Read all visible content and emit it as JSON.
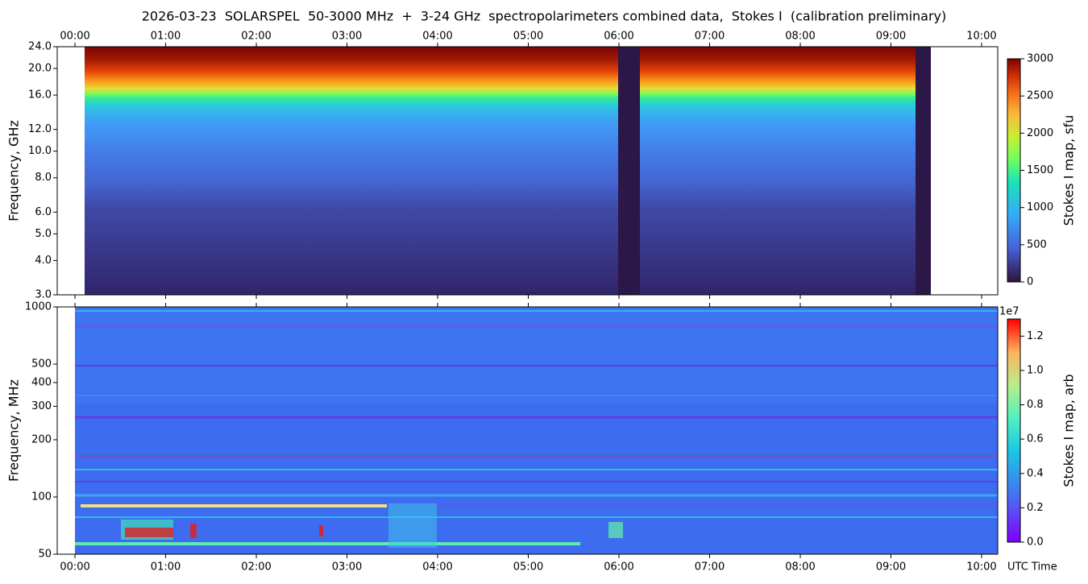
{
  "chart_data": [
    {
      "type": "heatmap",
      "title": "2026-03-23  SOLARSPEL  50-3000 MHz  +  3-24 GHz  spectropolarimeters combined data,  Stokes I  (calibration preliminary)",
      "ylabel": "Frequency, GHz",
      "xlim": [
        -0.196,
        10.178
      ],
      "xticks": [
        {
          "value": 0,
          "label": "00:00"
        },
        {
          "value": 1,
          "label": "01:00"
        },
        {
          "value": 2,
          "label": "02:00"
        },
        {
          "value": 3,
          "label": "03:00"
        },
        {
          "value": 4,
          "label": "04:00"
        },
        {
          "value": 5,
          "label": "05:00"
        },
        {
          "value": 6,
          "label": "06:00"
        },
        {
          "value": 7,
          "label": "07:00"
        },
        {
          "value": 8,
          "label": "08:00"
        },
        {
          "value": 9,
          "label": "09:00"
        },
        {
          "value": 10,
          "label": "10:00"
        }
      ],
      "xtick_labels": "top",
      "ylim": [
        3,
        24
      ],
      "yscale": "log",
      "yticks": [
        {
          "value": 3,
          "label": "3.0"
        },
        {
          "value": 4,
          "label": "4.0"
        },
        {
          "value": 5,
          "label": "5.0"
        },
        {
          "value": 6,
          "label": "6.0"
        },
        {
          "value": 8,
          "label": "8.0"
        },
        {
          "value": 10,
          "label": "10.0"
        },
        {
          "value": 12,
          "label": "12.0"
        },
        {
          "value": 16,
          "label": "16.0"
        },
        {
          "value": 20,
          "label": "20.0"
        },
        {
          "value": 24,
          "label": "24.0"
        }
      ],
      "colorbar": {
        "label": "Stokes I map, sfu",
        "lim": [
          0,
          3000
        ],
        "ticks": [
          0,
          500,
          1000,
          1500,
          2000,
          2500,
          3000
        ]
      }
    },
    {
      "type": "heatmap",
      "ylabel": "Frequency, MHz",
      "xlabel": "UTC Time",
      "xlim": [
        -0.196,
        10.178
      ],
      "xticks": [
        {
          "value": 0,
          "label": "00:00"
        },
        {
          "value": 1,
          "label": "01:00"
        },
        {
          "value": 2,
          "label": "02:00"
        },
        {
          "value": 3,
          "label": "03:00"
        },
        {
          "value": 4,
          "label": "04:00"
        },
        {
          "value": 5,
          "label": "05:00"
        },
        {
          "value": 6,
          "label": "06:00"
        },
        {
          "value": 7,
          "label": "07:00"
        },
        {
          "value": 8,
          "label": "08:00"
        },
        {
          "value": 9,
          "label": "09:00"
        },
        {
          "value": 10,
          "label": "10:00"
        }
      ],
      "xtick_labels": "bottom",
      "ylim": [
        50,
        1000
      ],
      "yscale": "log",
      "yticks": [
        50,
        100,
        200,
        300,
        400,
        500,
        1000
      ],
      "colorbar": {
        "label": "Stokes I map, arb",
        "lim": [
          0,
          1.3
        ],
        "offset_label": "1e7",
        "ticks": [
          {
            "value": 0,
            "label": "0.0"
          },
          {
            "value": 0.2,
            "label": "0.2"
          },
          {
            "value": 0.4,
            "label": "0.4"
          },
          {
            "value": 0.6,
            "label": "0.6"
          },
          {
            "value": 0.8,
            "label": "0.8"
          },
          {
            "value": 1,
            "label": "1.0"
          },
          {
            "value": 1.2,
            "label": "1.2"
          }
        ]
      }
    }
  ]
}
